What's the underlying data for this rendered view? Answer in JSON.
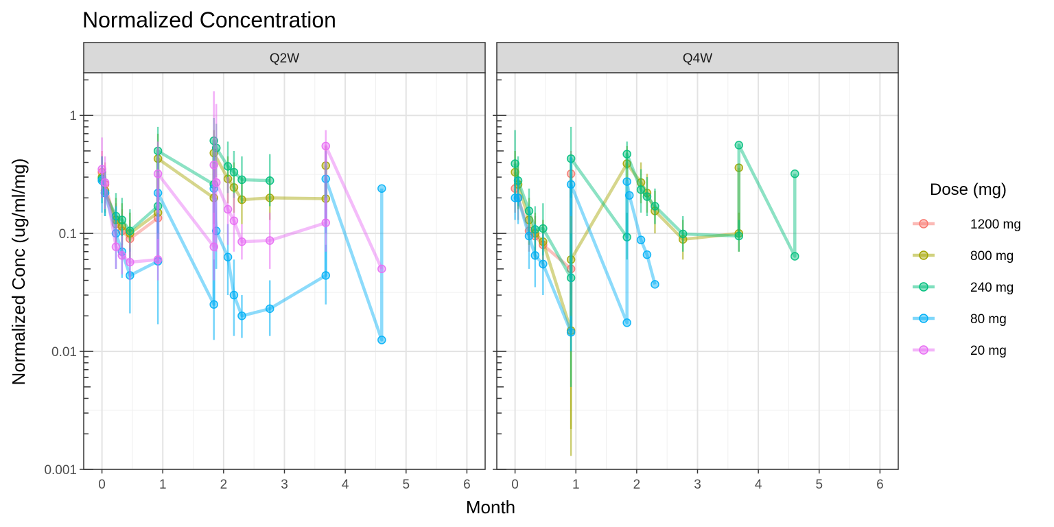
{
  "chart_data": {
    "type": "line",
    "title": "Normalized Concentration",
    "xlabel": "Month",
    "ylabel": "Normalized Conc (ug/ml/mg)",
    "y_scale": "log10",
    "ylim": [
      0.001,
      2.3
    ],
    "xlim": [
      -0.3,
      6.3
    ],
    "x_ticks": [
      "0",
      "1",
      "2",
      "3",
      "4",
      "5",
      "6"
    ],
    "y_ticks": [
      "0.001",
      "0.01",
      "0.1",
      "1"
    ],
    "grid": true,
    "legend": {
      "title": "Dose (mg)",
      "position": "right",
      "entries": [
        {
          "label": "1200 mg",
          "color": "#F8766D"
        },
        {
          "label": "800 mg",
          "color": "#A3A500"
        },
        {
          "label": "240 mg",
          "color": "#00BF7D"
        },
        {
          "label": "80 mg",
          "color": "#00B0F6"
        },
        {
          "label": "20 mg",
          "color": "#E76BF3"
        }
      ]
    },
    "panels": [
      {
        "name": "Q2W",
        "series": [
          {
            "name": "1200 mg",
            "color": "#F8766D",
            "points": [
              {
                "x": 0.0,
                "y": 0.33,
                "lo": 0.2,
                "hi": 0.5
              },
              {
                "x": 0.05,
                "y": 0.26,
                "lo": 0.18,
                "hi": 0.4
              },
              {
                "x": 0.23,
                "y": 0.12,
                "lo": 0.08,
                "hi": 0.18
              },
              {
                "x": 0.33,
                "y": 0.105,
                "lo": 0.07,
                "hi": 0.16
              },
              {
                "x": 0.46,
                "y": 0.09,
                "lo": 0.06,
                "hi": 0.13
              },
              {
                "x": 0.92,
                "y": 0.135,
                "lo": 0.09,
                "hi": 0.2
              }
            ]
          },
          {
            "name": "800 mg",
            "color": "#A3A500",
            "points": [
              {
                "x": 0.0,
                "y": 0.3,
                "lo": 0.2,
                "hi": 0.45
              },
              {
                "x": 0.05,
                "y": 0.23,
                "lo": 0.15,
                "hi": 0.35
              },
              {
                "x": 0.23,
                "y": 0.13,
                "lo": 0.08,
                "hi": 0.2
              },
              {
                "x": 0.33,
                "y": 0.115,
                "lo": 0.07,
                "hi": 0.18
              },
              {
                "x": 0.46,
                "y": 0.1,
                "lo": 0.06,
                "hi": 0.15
              },
              {
                "x": 0.92,
                "y": 0.15,
                "lo": 0.1,
                "hi": 0.25
              },
              {
                "x": 0.92,
                "y": 0.43,
                "lo": 0.25,
                "hi": 0.7
              },
              {
                "x": 1.84,
                "y": 0.2,
                "lo": 0.12,
                "hi": 0.35
              },
              {
                "x": 1.84,
                "y": 0.48,
                "lo": 0.3,
                "hi": 0.75
              },
              {
                "x": 2.07,
                "y": 0.29,
                "lo": 0.18,
                "hi": 0.45
              },
              {
                "x": 2.17,
                "y": 0.245,
                "lo": 0.15,
                "hi": 0.4
              },
              {
                "x": 2.3,
                "y": 0.193,
                "lo": 0.12,
                "hi": 0.3
              },
              {
                "x": 2.76,
                "y": 0.2,
                "lo": 0.13,
                "hi": 0.3
              },
              {
                "x": 3.68,
                "y": 0.197,
                "lo": 0.12,
                "hi": 0.3
              },
              {
                "x": 3.68,
                "y": 0.375,
                "lo": 0.25,
                "hi": 0.55
              }
            ]
          },
          {
            "name": "240 mg",
            "color": "#00BF7D",
            "points": [
              {
                "x": 0.0,
                "y": 0.29,
                "lo": 0.18,
                "hi": 0.45
              },
              {
                "x": 0.05,
                "y": 0.22,
                "lo": 0.14,
                "hi": 0.35
              },
              {
                "x": 0.23,
                "y": 0.14,
                "lo": 0.09,
                "hi": 0.22
              },
              {
                "x": 0.33,
                "y": 0.13,
                "lo": 0.08,
                "hi": 0.2
              },
              {
                "x": 0.46,
                "y": 0.105,
                "lo": 0.07,
                "hi": 0.16
              },
              {
                "x": 0.92,
                "y": 0.17,
                "lo": 0.1,
                "hi": 0.3
              },
              {
                "x": 0.92,
                "y": 0.5,
                "lo": 0.3,
                "hi": 0.8
              },
              {
                "x": 1.84,
                "y": 0.26,
                "lo": 0.15,
                "hi": 0.45
              },
              {
                "x": 1.84,
                "y": 0.61,
                "lo": 0.35,
                "hi": 0.95
              },
              {
                "x": 1.88,
                "y": 0.53,
                "lo": 0.3,
                "hi": 0.85
              },
              {
                "x": 2.07,
                "y": 0.37,
                "lo": 0.22,
                "hi": 0.6
              },
              {
                "x": 2.17,
                "y": 0.33,
                "lo": 0.2,
                "hi": 0.5
              },
              {
                "x": 2.3,
                "y": 0.285,
                "lo": 0.18,
                "hi": 0.45
              },
              {
                "x": 2.76,
                "y": 0.28,
                "lo": 0.17,
                "hi": 0.47
              }
            ]
          },
          {
            "name": "80 mg",
            "color": "#00B0F6",
            "points": [
              {
                "x": 0.0,
                "y": 0.28,
                "lo": 0.15,
                "hi": 0.45
              },
              {
                "x": 0.05,
                "y": 0.22,
                "lo": 0.14,
                "hi": 0.35
              },
              {
                "x": 0.23,
                "y": 0.1,
                "lo": 0.05,
                "hi": 0.17
              },
              {
                "x": 0.33,
                "y": 0.07,
                "lo": 0.042,
                "hi": 0.11
              },
              {
                "x": 0.46,
                "y": 0.044,
                "lo": 0.021,
                "hi": 0.075
              },
              {
                "x": 0.92,
                "y": 0.058,
                "lo": 0.017,
                "hi": 0.14
              },
              {
                "x": 0.92,
                "y": 0.22,
                "lo": 0.1,
                "hi": 0.4
              },
              {
                "x": 1.84,
                "y": 0.025,
                "lo": 0.0125,
                "hi": 0.06
              },
              {
                "x": 1.84,
                "y": 0.24,
                "lo": 0.12,
                "hi": 0.45
              },
              {
                "x": 1.88,
                "y": 0.105,
                "lo": 0.05,
                "hi": 0.2
              },
              {
                "x": 2.07,
                "y": 0.063,
                "lo": 0.03,
                "hi": 0.12
              },
              {
                "x": 2.17,
                "y": 0.03,
                "lo": 0.0135,
                "hi": 0.06
              },
              {
                "x": 2.3,
                "y": 0.02,
                "lo": 0.013,
                "hi": 0.03
              },
              {
                "x": 2.76,
                "y": 0.023,
                "lo": 0.0135,
                "hi": 0.04
              },
              {
                "x": 3.68,
                "y": 0.044,
                "lo": 0.025,
                "hi": 0.08
              },
              {
                "x": 3.68,
                "y": 0.29,
                "lo": 0.1,
                "hi": 0.5
              },
              {
                "x": 4.6,
                "y": 0.0125,
                "lo": 0.0125,
                "hi": 0.0125
              },
              {
                "x": 4.6,
                "y": 0.24,
                "lo": 0.24,
                "hi": 0.24
              }
            ]
          },
          {
            "name": "20 mg",
            "color": "#E76BF3",
            "points": [
              {
                "x": 0.0,
                "y": 0.35,
                "lo": 0.2,
                "hi": 0.65
              },
              {
                "x": 0.05,
                "y": 0.27,
                "lo": 0.16,
                "hi": 0.45
              },
              {
                "x": 0.23,
                "y": 0.077,
                "lo": 0.05,
                "hi": 0.12
              },
              {
                "x": 0.33,
                "y": 0.065,
                "lo": 0.045,
                "hi": 0.095
              },
              {
                "x": 0.46,
                "y": 0.057,
                "lo": 0.04,
                "hi": 0.085
              },
              {
                "x": 0.92,
                "y": 0.06,
                "lo": 0.04,
                "hi": 0.09
              },
              {
                "x": 0.92,
                "y": 0.32,
                "lo": 0.15,
                "hi": 0.6
              },
              {
                "x": 1.84,
                "y": 0.077,
                "lo": 0.04,
                "hi": 0.15
              },
              {
                "x": 1.84,
                "y": 0.38,
                "lo": 0.1,
                "hi": 1.6
              },
              {
                "x": 1.88,
                "y": 0.27,
                "lo": 0.07,
                "hi": 1.25
              },
              {
                "x": 2.07,
                "y": 0.16,
                "lo": 0.08,
                "hi": 0.3
              },
              {
                "x": 2.17,
                "y": 0.128,
                "lo": 0.07,
                "hi": 0.22
              },
              {
                "x": 2.3,
                "y": 0.085,
                "lo": 0.06,
                "hi": 0.12
              },
              {
                "x": 2.76,
                "y": 0.087,
                "lo": 0.05,
                "hi": 0.15
              },
              {
                "x": 3.68,
                "y": 0.123,
                "lo": 0.07,
                "hi": 0.2
              },
              {
                "x": 3.68,
                "y": 0.55,
                "lo": 0.4,
                "hi": 0.75
              },
              {
                "x": 4.6,
                "y": 0.05,
                "lo": 0.05,
                "hi": 0.05
              }
            ]
          }
        ]
      },
      {
        "name": "Q4W",
        "series": [
          {
            "name": "1200 mg",
            "color": "#F8766D",
            "points": [
              {
                "x": 0.0,
                "y": 0.24,
                "lo": 0.15,
                "hi": 0.4
              },
              {
                "x": 0.05,
                "y": 0.2,
                "lo": 0.13,
                "hi": 0.3
              },
              {
                "x": 0.23,
                "y": 0.105,
                "lo": 0.07,
                "hi": 0.16
              },
              {
                "x": 0.33,
                "y": 0.095,
                "lo": 0.06,
                "hi": 0.14
              },
              {
                "x": 0.46,
                "y": 0.08,
                "lo": 0.05,
                "hi": 0.12
              },
              {
                "x": 0.92,
                "y": 0.05,
                "lo": 0.03,
                "hi": 0.08
              },
              {
                "x": 0.92,
                "y": 0.32,
                "lo": 0.2,
                "hi": 0.5
              }
            ]
          },
          {
            "name": "800 mg",
            "color": "#A3A500",
            "points": [
              {
                "x": 0.0,
                "y": 0.33,
                "lo": 0.2,
                "hi": 0.5
              },
              {
                "x": 0.05,
                "y": 0.26,
                "lo": 0.16,
                "hi": 0.4
              },
              {
                "x": 0.23,
                "y": 0.13,
                "lo": 0.08,
                "hi": 0.2
              },
              {
                "x": 0.33,
                "y": 0.1,
                "lo": 0.06,
                "hi": 0.15
              },
              {
                "x": 0.46,
                "y": 0.085,
                "lo": 0.055,
                "hi": 0.13
              },
              {
                "x": 0.92,
                "y": 0.015,
                "lo": 0.0022,
                "hi": 0.06
              },
              {
                "x": 0.92,
                "y": 0.06,
                "lo": 0.0013,
                "hi": 0.14
              },
              {
                "x": 1.84,
                "y": 0.39,
                "lo": 0.28,
                "hi": 0.55
              },
              {
                "x": 2.07,
                "y": 0.27,
                "lo": 0.18,
                "hi": 0.4
              },
              {
                "x": 2.17,
                "y": 0.22,
                "lo": 0.15,
                "hi": 0.32
              },
              {
                "x": 2.3,
                "y": 0.155,
                "lo": 0.1,
                "hi": 0.23
              },
              {
                "x": 2.76,
                "y": 0.089,
                "lo": 0.06,
                "hi": 0.13
              },
              {
                "x": 3.68,
                "y": 0.1,
                "lo": 0.07,
                "hi": 0.15
              },
              {
                "x": 3.68,
                "y": 0.36,
                "lo": 0.36,
                "hi": 0.36
              }
            ]
          },
          {
            "name": "240 mg",
            "color": "#00BF7D",
            "points": [
              {
                "x": 0.0,
                "y": 0.39,
                "lo": 0.2,
                "hi": 0.75
              },
              {
                "x": 0.05,
                "y": 0.28,
                "lo": 0.17,
                "hi": 0.45
              },
              {
                "x": 0.23,
                "y": 0.155,
                "lo": 0.1,
                "hi": 0.24
              },
              {
                "x": 0.33,
                "y": 0.108,
                "lo": 0.065,
                "hi": 0.17
              },
              {
                "x": 0.46,
                "y": 0.11,
                "lo": 0.065,
                "hi": 0.18
              },
              {
                "x": 0.92,
                "y": 0.042,
                "lo": 0.005,
                "hi": 0.1
              },
              {
                "x": 0.92,
                "y": 0.43,
                "lo": 0.2,
                "hi": 0.8
              },
              {
                "x": 1.84,
                "y": 0.093,
                "lo": 0.06,
                "hi": 0.15
              },
              {
                "x": 1.84,
                "y": 0.47,
                "lo": 0.35,
                "hi": 0.6
              },
              {
                "x": 2.07,
                "y": 0.235,
                "lo": 0.15,
                "hi": 0.35
              },
              {
                "x": 2.17,
                "y": 0.205,
                "lo": 0.14,
                "hi": 0.3
              },
              {
                "x": 2.3,
                "y": 0.17,
                "lo": 0.12,
                "hi": 0.24
              },
              {
                "x": 2.76,
                "y": 0.099,
                "lo": 0.07,
                "hi": 0.14
              },
              {
                "x": 3.68,
                "y": 0.095,
                "lo": 0.07,
                "hi": 0.13
              },
              {
                "x": 3.68,
                "y": 0.56,
                "lo": 0.56,
                "hi": 0.56
              },
              {
                "x": 4.6,
                "y": 0.064,
                "lo": 0.064,
                "hi": 0.064
              },
              {
                "x": 4.6,
                "y": 0.32,
                "lo": 0.32,
                "hi": 0.32
              }
            ]
          },
          {
            "name": "80 mg",
            "color": "#00B0F6",
            "points": [
              {
                "x": 0.0,
                "y": 0.2,
                "lo": 0.13,
                "hi": 0.3
              },
              {
                "x": 0.05,
                "y": 0.2,
                "lo": 0.12,
                "hi": 0.3
              },
              {
                "x": 0.23,
                "y": 0.095,
                "lo": 0.05,
                "hi": 0.17
              },
              {
                "x": 0.33,
                "y": 0.065,
                "lo": 0.035,
                "hi": 0.12
              },
              {
                "x": 0.46,
                "y": 0.055,
                "lo": 0.03,
                "hi": 0.1
              },
              {
                "x": 0.92,
                "y": 0.0145,
                "lo": 0.01,
                "hi": 0.02
              },
              {
                "x": 0.92,
                "y": 0.26,
                "lo": 0.14,
                "hi": 0.45
              },
              {
                "x": 1.84,
                "y": 0.0175,
                "lo": 0.0175,
                "hi": 0.0175
              },
              {
                "x": 1.84,
                "y": 0.275,
                "lo": 0.275,
                "hi": 0.275
              },
              {
                "x": 1.88,
                "y": 0.21,
                "lo": 0.21,
                "hi": 0.21
              },
              {
                "x": 2.07,
                "y": 0.088,
                "lo": 0.088,
                "hi": 0.088
              },
              {
                "x": 2.17,
                "y": 0.066,
                "lo": 0.066,
                "hi": 0.066
              },
              {
                "x": 2.3,
                "y": 0.037,
                "lo": 0.037,
                "hi": 0.037
              }
            ]
          }
        ]
      }
    ]
  }
}
